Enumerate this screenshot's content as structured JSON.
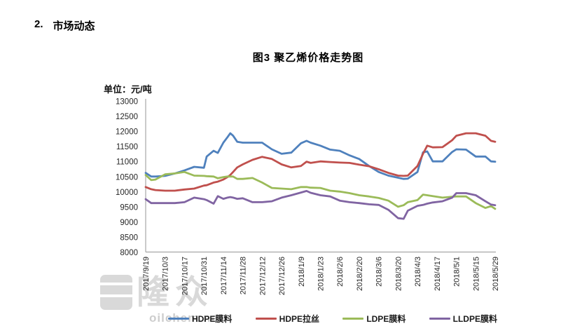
{
  "heading": {
    "number": "2.",
    "text": "市场动态"
  },
  "chart": {
    "title": "图3 聚乙烯价格走势图",
    "unit_label": "单位：元/吨"
  },
  "watermark": {
    "logo_text": "隆众",
    "site": "oilchem.net"
  },
  "colors": {
    "axis": "#a6a6a6",
    "tick_text": "#262626",
    "series_blue": "#4F81BD",
    "series_red": "#C0504D",
    "series_green": "#9BBB59",
    "series_purple": "#8064A2"
  },
  "chart_data": {
    "type": "line",
    "title": "图3 聚乙烯价格走势图",
    "ylabel": "单位：元/吨",
    "xlabel": "",
    "ylim": [
      8000,
      13000
    ],
    "grid": false,
    "legend_position": "bottom",
    "y_ticks": [
      8000,
      8500,
      9000,
      9500,
      10000,
      10500,
      11000,
      11500,
      12000,
      12500,
      13000
    ],
    "x_tick_labels": [
      "2017/9/19",
      "2017/10/3",
      "2017/10/17",
      "2017/10/31",
      "2017/11/14",
      "2017/11/28",
      "2017/12/12",
      "2017/12/26",
      "2018/1/9",
      "2018/1/23",
      "2018/2/6",
      "2018/2/20",
      "2018/3/6",
      "2018/3/20",
      "2018/4/3",
      "2018/4/17",
      "2018/5/1",
      "2018/5/15",
      "2018/5/29"
    ],
    "x_tick_days": [
      0,
      14,
      28,
      42,
      56,
      70,
      84,
      98,
      112,
      126,
      140,
      154,
      168,
      182,
      196,
      210,
      224,
      238,
      252
    ],
    "x_days": [
      0,
      4,
      7,
      14,
      21,
      28,
      35,
      42,
      44,
      49,
      52,
      56,
      59,
      61,
      63,
      66,
      70,
      77,
      84,
      91,
      98,
      105,
      112,
      116,
      119,
      126,
      133,
      140,
      147,
      154,
      161,
      168,
      175,
      182,
      186,
      189,
      196,
      200,
      203,
      207,
      214,
      221,
      224,
      231,
      238,
      245,
      249,
      252
    ],
    "series": [
      {
        "name": "HDPE膜料",
        "slug": "hdpe-film",
        "color": "#4F81BD",
        "values": [
          10620,
          10500,
          10500,
          10520,
          10600,
          10700,
          10820,
          10790,
          11160,
          11350,
          11280,
          11620,
          11800,
          11930,
          11850,
          11650,
          11620,
          11620,
          11620,
          11400,
          11250,
          11290,
          11600,
          11680,
          11620,
          11520,
          11390,
          11350,
          11200,
          11080,
          10850,
          10650,
          10530,
          10460,
          10420,
          10430,
          10650,
          11300,
          11330,
          11000,
          11000,
          11310,
          11400,
          11390,
          11160,
          11160,
          11000,
          10990
        ]
      },
      {
        "name": "HDPE拉丝",
        "slug": "hdpe-drawing",
        "color": "#C0504D",
        "values": [
          10150,
          10080,
          10050,
          10030,
          10030,
          10070,
          10100,
          10200,
          10210,
          10300,
          10330,
          10400,
          10480,
          10550,
          10650,
          10800,
          10900,
          11050,
          11150,
          11080,
          10900,
          10800,
          10850,
          10990,
          10950,
          11000,
          10980,
          10960,
          10950,
          10890,
          10840,
          10740,
          10620,
          10530,
          10520,
          10530,
          10850,
          11250,
          11520,
          11465,
          11470,
          11700,
          11850,
          11930,
          11930,
          11850,
          11680,
          11650
        ]
      },
      {
        "name": "LDPE膜料",
        "slug": "ldpe-film",
        "color": "#9BBB59",
        "values": [
          10550,
          10380,
          10400,
          10570,
          10600,
          10650,
          10530,
          10520,
          10510,
          10500,
          10440,
          10480,
          10500,
          10500,
          10500,
          10420,
          10420,
          10450,
          10300,
          10120,
          10100,
          10080,
          10150,
          10150,
          10130,
          10120,
          10030,
          10000,
          9950,
          9880,
          9840,
          9790,
          9700,
          9500,
          9550,
          9650,
          9720,
          9900,
          9880,
          9850,
          9800,
          9830,
          9840,
          9840,
          9620,
          9460,
          9520,
          9430
        ]
      },
      {
        "name": "LLDPE膜料",
        "slug": "lldpe-film",
        "color": "#8064A2",
        "values": [
          9750,
          9620,
          9620,
          9620,
          9620,
          9650,
          9800,
          9750,
          9720,
          9600,
          9850,
          9760,
          9800,
          9820,
          9800,
          9760,
          9780,
          9650,
          9650,
          9680,
          9800,
          9880,
          9970,
          10020,
          9960,
          9880,
          9840,
          9700,
          9650,
          9620,
          9580,
          9560,
          9400,
          9120,
          9100,
          9370,
          9530,
          9560,
          9600,
          9640,
          9680,
          9800,
          9950,
          9950,
          9880,
          9680,
          9570,
          9550
        ]
      }
    ]
  }
}
